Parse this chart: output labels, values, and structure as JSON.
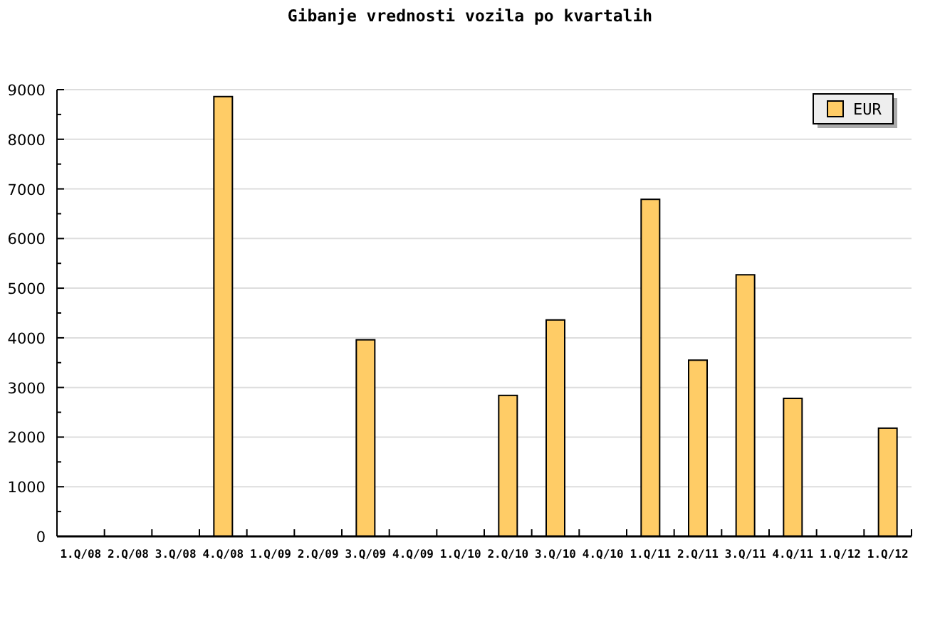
{
  "chart_data": {
    "type": "bar",
    "title": "Gibanje vrednosti vozila po kvartalih",
    "categories": [
      "1.Q/08",
      "2.Q/08",
      "3.Q/08",
      "4.Q/08",
      "1.Q/09",
      "2.Q/09",
      "3.Q/09",
      "4.Q/09",
      "1.Q/10",
      "2.Q/10",
      "3.Q/10",
      "4.Q/10",
      "1.Q/11",
      "2.Q/11",
      "3.Q/11",
      "4.Q/11",
      "1.Q/12",
      "1.Q/12"
    ],
    "series": [
      {
        "name": "EUR",
        "color": "#ffcc66",
        "values": [
          null,
          null,
          null,
          8860,
          null,
          null,
          3960,
          null,
          null,
          2840,
          4360,
          null,
          6790,
          3550,
          5270,
          2780,
          null,
          2180
        ]
      }
    ],
    "ylim": [
      0,
      9000
    ],
    "yticks": [
      0,
      {
        "value": 500,
        "label": null
      },
      1000,
      {
        "value": 1500,
        "label": null
      },
      2000,
      {
        "value": 2500,
        "label": null
      },
      3000,
      {
        "value": 3500,
        "label": null
      },
      4000,
      {
        "value": 4500,
        "label": null
      },
      5000,
      {
        "value": 5500,
        "label": null
      },
      6000,
      {
        "value": 6500,
        "label": null
      },
      7000,
      {
        "value": 7500,
        "label": null
      },
      8000,
      {
        "value": 8500,
        "label": null
      },
      9000
    ],
    "grid": "y",
    "legend": "top right"
  }
}
